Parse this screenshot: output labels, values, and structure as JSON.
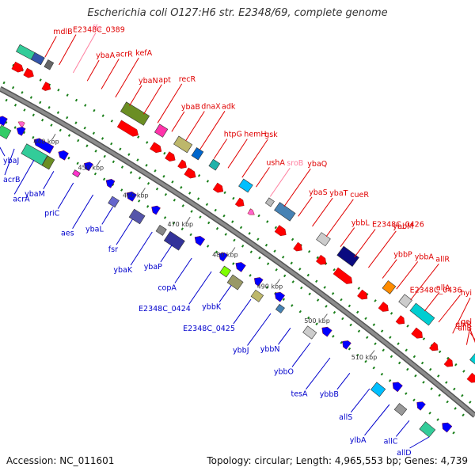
{
  "title": "Escherichia coli O127:H6 str. E2348/69, complete genome",
  "footer": {
    "accession": "Accession: NC_011601",
    "summary": "Topology: circular; Length: 4,965,553 bp; Genes: 4,739"
  },
  "colors": {
    "backbone": "#8c8c8c",
    "forward_label": "#e00000",
    "reverse_label": "#0000cc",
    "rna_label": "#ff80a0",
    "forward_arrow": "#ff0000",
    "reverse_arrow": "#0000ff",
    "rna_arrow": "#ff66cc",
    "dot": "#1a7f1a"
  },
  "ticks": [
    "440 kbp",
    "450 kbp",
    "460 kbp",
    "470 kbp",
    "480 kbp",
    "490 kbp",
    "500 kbp",
    "510 kbp"
  ],
  "genes_forward": [
    {
      "name": "mdlB",
      "kind": "cds"
    },
    {
      "name": "E2348C_0389",
      "kind": "cds"
    },
    {
      "name": "ffs",
      "kind": "rna"
    },
    {
      "name": "ybaA",
      "kind": "cds"
    },
    {
      "name": "acrR",
      "kind": "cds"
    },
    {
      "name": "kefA",
      "kind": "cds"
    },
    {
      "name": "ybaN",
      "kind": "cds"
    },
    {
      "name": "apt",
      "kind": "cds"
    },
    {
      "name": "recR",
      "kind": "cds"
    },
    {
      "name": "ybaB",
      "kind": "cds"
    },
    {
      "name": "dnaX",
      "kind": "cds"
    },
    {
      "name": "adk",
      "kind": "cds"
    },
    {
      "name": "htpG",
      "kind": "cds"
    },
    {
      "name": "hemH",
      "kind": "cds"
    },
    {
      "name": "gsk",
      "kind": "cds"
    },
    {
      "name": "ushA",
      "kind": "cds"
    },
    {
      "name": "sroB",
      "kind": "rna"
    },
    {
      "name": "ybaQ",
      "kind": "cds"
    },
    {
      "name": "ybaS",
      "kind": "cds"
    },
    {
      "name": "ybaT",
      "kind": "cds"
    },
    {
      "name": "cueR",
      "kind": "cds"
    },
    {
      "name": "ybbL",
      "kind": "cds"
    },
    {
      "name": "E2348C_0426",
      "kind": "cds"
    },
    {
      "name": "ybbM",
      "kind": "cds"
    },
    {
      "name": "ybbP",
      "kind": "cds"
    },
    {
      "name": "ybbA",
      "kind": "cds"
    },
    {
      "name": "allR",
      "kind": "cds"
    },
    {
      "name": "allA",
      "kind": "cds"
    },
    {
      "name": "E2348C_0436",
      "kind": "cds"
    },
    {
      "name": "hyi",
      "kind": "cds"
    },
    {
      "name": "gcl",
      "kind": "cds"
    },
    {
      "name": "glxR",
      "kind": "cds"
    },
    {
      "name": "allB",
      "kind": "cds"
    }
  ],
  "genes_reverse": [
    {
      "name": "ybaJ"
    },
    {
      "name": "acrB"
    },
    {
      "name": "acrA"
    },
    {
      "name": "ybaM"
    },
    {
      "name": "priC"
    },
    {
      "name": "aes"
    },
    {
      "name": "ybaL"
    },
    {
      "name": "fsr"
    },
    {
      "name": "ybaK"
    },
    {
      "name": "ybaP"
    },
    {
      "name": "copA"
    },
    {
      "name": "E2348C_0424"
    },
    {
      "name": "ybbK"
    },
    {
      "name": "E2348C_0425"
    },
    {
      "name": "ybbJ"
    },
    {
      "name": "ybbN"
    },
    {
      "name": "ybbO"
    },
    {
      "name": "tesA"
    },
    {
      "name": "ybbB"
    },
    {
      "name": "allS"
    },
    {
      "name": "ylbA"
    },
    {
      "name": "allC"
    },
    {
      "name": "allD"
    }
  ]
}
